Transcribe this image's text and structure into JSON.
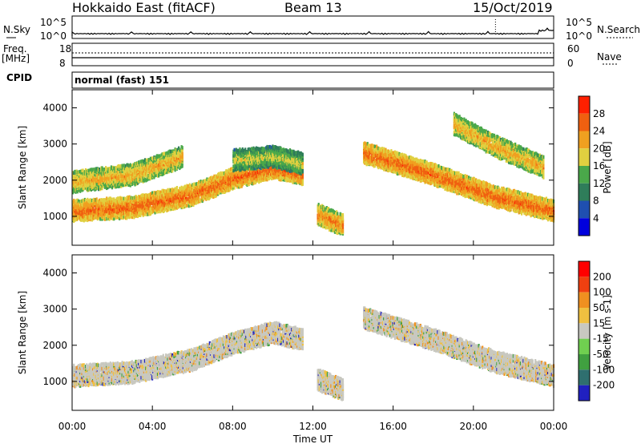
{
  "header": {
    "site": "Hokkaido East (fitACF)",
    "beam": "Beam 13",
    "date": "15/Oct/2019"
  },
  "noise_panel": {
    "left_label": "N.Sky",
    "right_label": "N.Search",
    "ticks": [
      "10^5",
      "10^0"
    ]
  },
  "freq_panel": {
    "left_label": "Freq.",
    "unit": "[MHz]",
    "right_label": "Nave",
    "left_ticks": [
      "18",
      "8"
    ],
    "right_ticks": [
      "60",
      "0"
    ]
  },
  "cpid": {
    "label": "CPID",
    "text": "normal (fast) 151"
  },
  "chart_data": [
    {
      "type": "heatmap",
      "title": "",
      "ylabel": "Slant Range [km]",
      "xlabel": "",
      "x_ticks": [
        "00:00",
        "04:00",
        "08:00",
        "12:00",
        "16:00",
        "20:00",
        "00:00"
      ],
      "y_ticks": [
        1000,
        2000,
        3000,
        4000
      ],
      "ylim": [
        200,
        4500
      ],
      "xlim_hours": [
        0,
        24
      ],
      "colorbar": {
        "label": "Power [dB]",
        "ticks": [
          4,
          8,
          12,
          16,
          20,
          24,
          28
        ],
        "colors": [
          "#0000dd",
          "#1f4fb0",
          "#2f7d5a",
          "#4aa84a",
          "#e0d040",
          "#f0a020",
          "#f06010",
          "#ff2000"
        ]
      },
      "bands": [
        {
          "x": [
            0,
            3,
            6,
            8,
            10,
            11.5
          ],
          "y": [
            1200,
            1300,
            1650,
            2100,
            2400,
            2200
          ],
          "power": 26
        },
        {
          "x": [
            0,
            3,
            5.5
          ],
          "y": [
            2000,
            2200,
            2700
          ],
          "power": 22
        },
        {
          "x": [
            8,
            10,
            11.5
          ],
          "y": [
            2600,
            2700,
            2500
          ],
          "power": 18
        },
        {
          "x": [
            12.2,
            13.5
          ],
          "y": [
            1100,
            800
          ],
          "power": 24
        },
        {
          "x": [
            14.5,
            18,
            21,
            24
          ],
          "y": [
            2800,
            2200,
            1600,
            1200
          ],
          "power": 26
        },
        {
          "x": [
            19,
            21,
            23.5
          ],
          "y": [
            3600,
            3000,
            2400
          ],
          "power": 22
        }
      ]
    },
    {
      "type": "heatmap",
      "title": "",
      "ylabel": "Slant Range [km]",
      "xlabel": "Time UT",
      "x_ticks": [
        "00:00",
        "04:00",
        "08:00",
        "12:00",
        "16:00",
        "20:00",
        "00:00"
      ],
      "y_ticks": [
        1000,
        2000,
        3000,
        4000
      ],
      "ylim": [
        200,
        4500
      ],
      "xlim_hours": [
        0,
        24
      ],
      "colorbar": {
        "label": "Velocity [m s-1]",
        "ticks": [
          200,
          100,
          50,
          15,
          -15,
          -50,
          -100,
          -200
        ],
        "colors": [
          "#2020c0",
          "#2f6f6f",
          "#40a040",
          "#70d050",
          "#c8c8c0",
          "#f0c040",
          "#f09020",
          "#f04010",
          "#ff0000"
        ]
      },
      "bands": [
        {
          "x": [
            0,
            3,
            6,
            8,
            10,
            11.5
          ],
          "y": [
            1200,
            1300,
            1650,
            2100,
            2400,
            2200
          ],
          "velocity": 0
        },
        {
          "x": [
            14.5,
            18,
            21,
            24
          ],
          "y": [
            2800,
            2200,
            1600,
            1200
          ],
          "velocity": 0
        },
        {
          "x": [
            12.2,
            13.5
          ],
          "y": [
            1100,
            800
          ],
          "velocity": 0
        }
      ]
    }
  ]
}
